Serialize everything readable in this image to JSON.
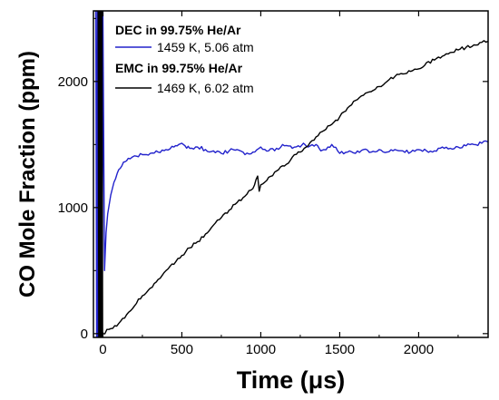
{
  "chart_data": {
    "type": "line",
    "xlabel": "Time (μs)",
    "ylabel": "CO Mole Fraction (ppm)",
    "xlim": [
      -60,
      2440
    ],
    "ylim": [
      -30,
      2560
    ],
    "xticks": [
      0,
      500,
      1000,
      1500,
      2000
    ],
    "yticks": [
      0,
      1000,
      2000
    ],
    "x_tick_labels": [
      "0",
      "500",
      "1000",
      "1500",
      "2000"
    ],
    "y_tick_labels": [
      "0",
      "1000",
      "2000"
    ],
    "grid": false,
    "legend_position": "top-left",
    "legend_groups": [
      {
        "heading": "DEC in 99.75% He/Ar",
        "entry": "1459 K, 5.06 atm",
        "series_index": 0
      },
      {
        "heading": "EMC in 99.75% He/Ar",
        "entry": "1469 K, 6.02 atm",
        "series_index": 1
      }
    ],
    "series": [
      {
        "name": "1459 K, 5.06 atm",
        "color": "#2222cc",
        "x": [
          -45,
          -40,
          -36,
          -32,
          -27,
          -22,
          -17,
          -12,
          -8,
          -4,
          0,
          10,
          20,
          30,
          50,
          70,
          100,
          130,
          160,
          200,
          250,
          300,
          350,
          400,
          450,
          480,
          500,
          520,
          550,
          600,
          650,
          700,
          750,
          800,
          850,
          900,
          950,
          1000,
          1050,
          1100,
          1150,
          1200,
          1250,
          1270,
          1300,
          1350,
          1380,
          1400,
          1450,
          1500,
          1550,
          1600,
          1650,
          1700,
          1750,
          1800,
          1850,
          1900,
          1950,
          2000,
          2050,
          2100,
          2150,
          2200,
          2250,
          2300,
          2350,
          2400,
          2440
        ],
        "y": [
          2560,
          -30,
          2560,
          -30,
          2560,
          -30,
          2560,
          -30,
          2560,
          -30,
          2560,
          500,
          800,
          950,
          1100,
          1200,
          1300,
          1360,
          1390,
          1410,
          1420,
          1430,
          1440,
          1460,
          1480,
          1500,
          1510,
          1490,
          1470,
          1480,
          1460,
          1450,
          1430,
          1450,
          1460,
          1420,
          1440,
          1480,
          1450,
          1470,
          1490,
          1470,
          1480,
          1510,
          1480,
          1500,
          1450,
          1460,
          1500,
          1430,
          1440,
          1430,
          1460,
          1440,
          1460,
          1440,
          1460,
          1450,
          1440,
          1460,
          1450,
          1450,
          1480,
          1470,
          1480,
          1490,
          1500,
          1510,
          1520
        ]
      },
      {
        "name": "1469 K, 6.02 atm",
        "color": "#000000",
        "x": [
          -30,
          -26,
          -22,
          -18,
          -14,
          -10,
          -6,
          -2,
          0,
          50,
          100,
          150,
          200,
          250,
          300,
          350,
          400,
          450,
          500,
          550,
          600,
          650,
          700,
          750,
          800,
          850,
          900,
          950,
          980,
          990,
          1000,
          1050,
          1100,
          1150,
          1200,
          1250,
          1300,
          1350,
          1400,
          1450,
          1500,
          1550,
          1600,
          1650,
          1700,
          1750,
          1800,
          1850,
          1900,
          1950,
          2000,
          2050,
          2100,
          2150,
          2200,
          2250,
          2300,
          2350,
          2400,
          2440
        ],
        "y": [
          2560,
          -30,
          2560,
          -30,
          2560,
          -30,
          2560,
          -30,
          0,
          40,
          80,
          150,
          220,
          300,
          360,
          430,
          500,
          550,
          620,
          680,
          730,
          790,
          860,
          920,
          980,
          1040,
          1090,
          1150,
          1250,
          1130,
          1180,
          1240,
          1290,
          1330,
          1400,
          1440,
          1490,
          1560,
          1610,
          1660,
          1720,
          1790,
          1850,
          1890,
          1920,
          1960,
          2000,
          2040,
          2060,
          2080,
          2100,
          2150,
          2170,
          2200,
          2230,
          2250,
          2270,
          2290,
          2310,
          2320
        ]
      }
    ]
  }
}
